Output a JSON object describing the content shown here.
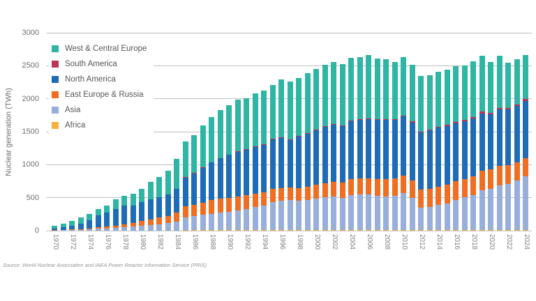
{
  "page": {
    "background": "#ffffff"
  },
  "source_note": "Source: World Nuclear Asocciation and IAEA Power Reactor Information Service (PRIS)",
  "chart_data": {
    "type": "bar",
    "stacked": true,
    "title": "",
    "xlabel": "",
    "ylabel": "Nuclear generation (TWh)",
    "ylim": [
      0,
      3000
    ],
    "yticks": [
      0,
      500,
      1000,
      1500,
      2000,
      2500,
      3000
    ],
    "grid": "horizontal",
    "legend_position": "top-left",
    "x": [
      1970,
      1971,
      1972,
      1973,
      1974,
      1975,
      1976,
      1977,
      1978,
      1979,
      1980,
      1981,
      1982,
      1983,
      1984,
      1985,
      1986,
      1987,
      1988,
      1989,
      1990,
      1991,
      1992,
      1993,
      1994,
      1995,
      1996,
      1997,
      1998,
      1999,
      2000,
      2001,
      2002,
      2003,
      2004,
      2005,
      2006,
      2007,
      2008,
      2009,
      2010,
      2011,
      2012,
      2013,
      2014,
      2015,
      2016,
      2017,
      2018,
      2019,
      2020,
      2021,
      2022,
      2023,
      2024
    ],
    "xtick_labels": [
      1970,
      1972,
      1974,
      1976,
      1978,
      1980,
      1982,
      1984,
      1986,
      1988,
      1990,
      1992,
      1994,
      1996,
      1998,
      2000,
      2002,
      2004,
      2006,
      2008,
      2010,
      2012,
      2014,
      2016,
      2018,
      2020,
      2022,
      2024
    ],
    "series_note": "series listed bottom-to-top of stack; values in TWh",
    "series": [
      {
        "name": "Africa",
        "color": "#f5b23e",
        "values": [
          0,
          0,
          0,
          0,
          0,
          0,
          0,
          0,
          0,
          0,
          0,
          0,
          0,
          0,
          0,
          5,
          6,
          6,
          7,
          7,
          8,
          8,
          9,
          7,
          9,
          11,
          12,
          13,
          13,
          13,
          13,
          11,
          12,
          13,
          14,
          12,
          10,
          13,
          13,
          13,
          12,
          13,
          13,
          14,
          15,
          12,
          15,
          15,
          11,
          14,
          12,
          12,
          10,
          11,
          12
        ]
      },
      {
        "name": "Asia",
        "color": "#98afdc",
        "values": [
          5,
          8,
          11,
          12,
          22,
          28,
          36,
          42,
          53,
          60,
          73,
          86,
          100,
          115,
          140,
          200,
          220,
          235,
          250,
          265,
          280,
          300,
          315,
          350,
          370,
          420,
          440,
          450,
          440,
          455,
          477,
          495,
          505,
          485,
          525,
          540,
          541,
          520,
          510,
          520,
          560,
          480,
          340,
          350,
          375,
          405,
          450,
          490,
          533,
          600,
          620,
          680,
          700,
          750,
          810
        ]
      },
      {
        "name": "East Europe & Russia",
        "color": "#ef6e22",
        "values": [
          4,
          5,
          8,
          10,
          14,
          20,
          26,
          35,
          44,
          54,
          73,
          86,
          100,
          110,
          130,
          160,
          170,
          187,
          204,
          212,
          211,
          212,
          210,
          208,
          202,
          200,
          195,
          192,
          195,
          200,
          203,
          215,
          220,
          230,
          240,
          243,
          245,
          250,
          255,
          255,
          260,
          265,
          270,
          273,
          280,
          285,
          282,
          280,
          285,
          290,
          295,
          290,
          280,
          270,
          272
        ]
      },
      {
        "name": "North America",
        "color": "#1d6cb5",
        "values": [
          23,
          41,
          60,
          88,
          122,
          186,
          211,
          251,
          287,
          269,
          287,
          300,
          305,
          322,
          367,
          440,
          473,
          527,
          570,
          612,
          649,
          675,
          690,
          700,
          720,
          750,
          763,
          720,
          780,
          805,
          830,
          855,
          870,
          855,
          880,
          880,
          891,
          898,
          900,
          890,
          900,
          885,
          867,
          880,
          890,
          885,
          880,
          875,
          870,
          875,
          840,
          855,
          850,
          860,
          873
        ]
      },
      {
        "name": "South America",
        "color": "#be3455",
        "values": [
          0,
          0,
          0,
          0,
          0,
          0,
          0,
          0,
          0,
          0,
          2,
          2,
          2,
          2,
          2,
          6,
          6,
          6,
          6,
          7,
          9,
          10,
          10,
          10,
          10,
          10,
          10,
          10,
          10,
          10,
          11,
          12,
          12,
          13,
          14,
          16,
          14,
          15,
          15,
          14,
          15,
          15,
          16,
          18,
          19,
          20,
          21,
          21,
          22,
          23,
          22,
          22,
          22,
          23,
          25
        ]
      },
      {
        "name": "West & Central Europe",
        "color": "#2eb5a3",
        "values": [
          42,
          57,
          73,
          92,
          95,
          98,
          110,
          144,
          146,
          176,
          204,
          262,
          305,
          360,
          450,
          545,
          575,
          640,
          690,
          727,
          745,
          780,
          775,
          805,
          815,
          820,
          870,
          880,
          875,
          910,
          916,
          930,
          935,
          930,
          945,
          935,
          960,
          912,
          905,
          866,
          883,
          860,
          840,
          824,
          831,
          834,
          842,
          825,
          842,
          855,
          764,
          794,
          684,
          688,
          675
        ]
      }
    ],
    "legend": [
      {
        "label": "West & Central Europe",
        "color": "#2eb5a3"
      },
      {
        "label": "South America",
        "color": "#be3455"
      },
      {
        "label": "North America",
        "color": "#1d6cb5"
      },
      {
        "label": "East Europe & Russia",
        "color": "#ef6e22"
      },
      {
        "label": "Asia",
        "color": "#98afdc"
      },
      {
        "label": "Africa",
        "color": "#f5b23e"
      }
    ]
  }
}
